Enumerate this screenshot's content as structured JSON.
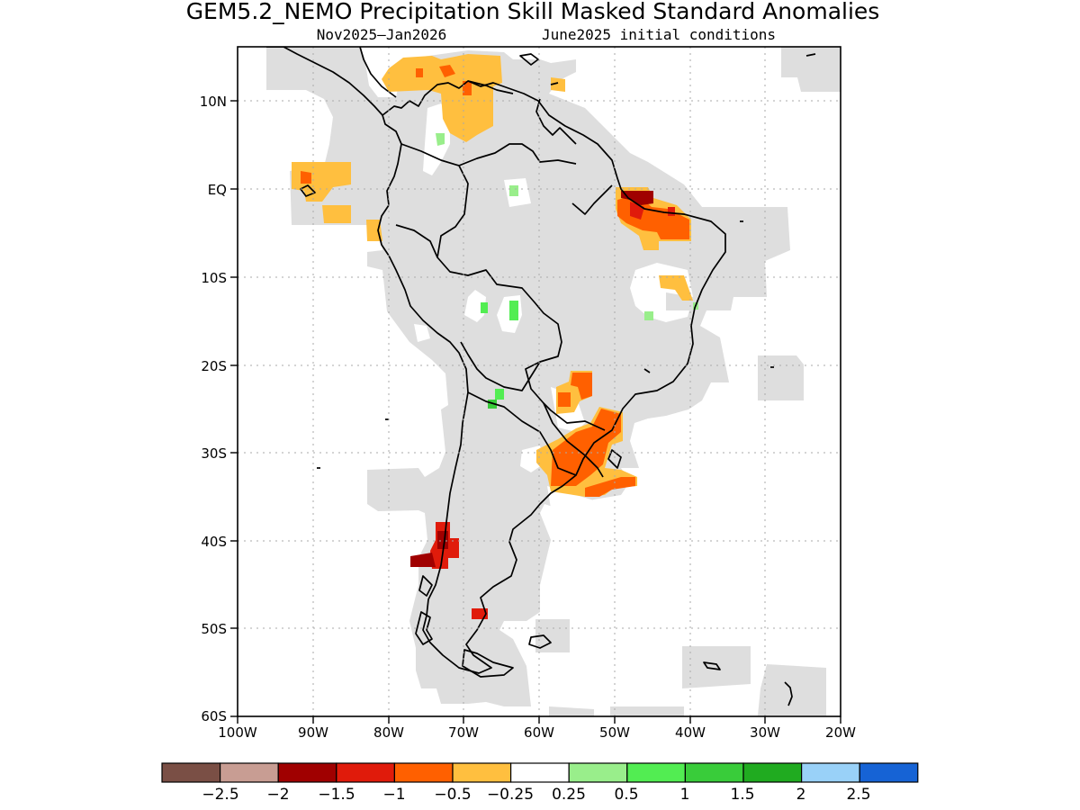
{
  "title": "GEM5.2_NEMO Precipitation Skill Masked Standard Anomalies",
  "subtitle_left": "Nov2025–Jan2026",
  "subtitle_right": "June2025 initial conditions",
  "axes": {
    "lat_labels": [
      "10N",
      "EQ",
      "10S",
      "20S",
      "30S",
      "40S",
      "50S",
      "60S"
    ],
    "lon_labels": [
      "100W",
      "90W",
      "80W",
      "70W",
      "60W",
      "50W",
      "40W",
      "30W",
      "20W"
    ]
  },
  "colorbar": {
    "labels": [
      "−2.5",
      "−2",
      "−1.5",
      "−1",
      "−0.5",
      "−0.25",
      "0.25",
      "0.5",
      "1",
      "1.5",
      "2",
      "2.5"
    ],
    "colors": [
      "#7a4f45",
      "#c89d93",
      "#a00000",
      "#e01b0b",
      "#ff6000",
      "#ffbf3f",
      "#ffffff",
      "#99ee8b",
      "#52ed52",
      "#39cc3a",
      "#20ab20",
      "#99d1f8",
      "#1663d5"
    ]
  },
  "colors": {
    "mask_gray": "#dedede",
    "coastline": "#000000"
  }
}
